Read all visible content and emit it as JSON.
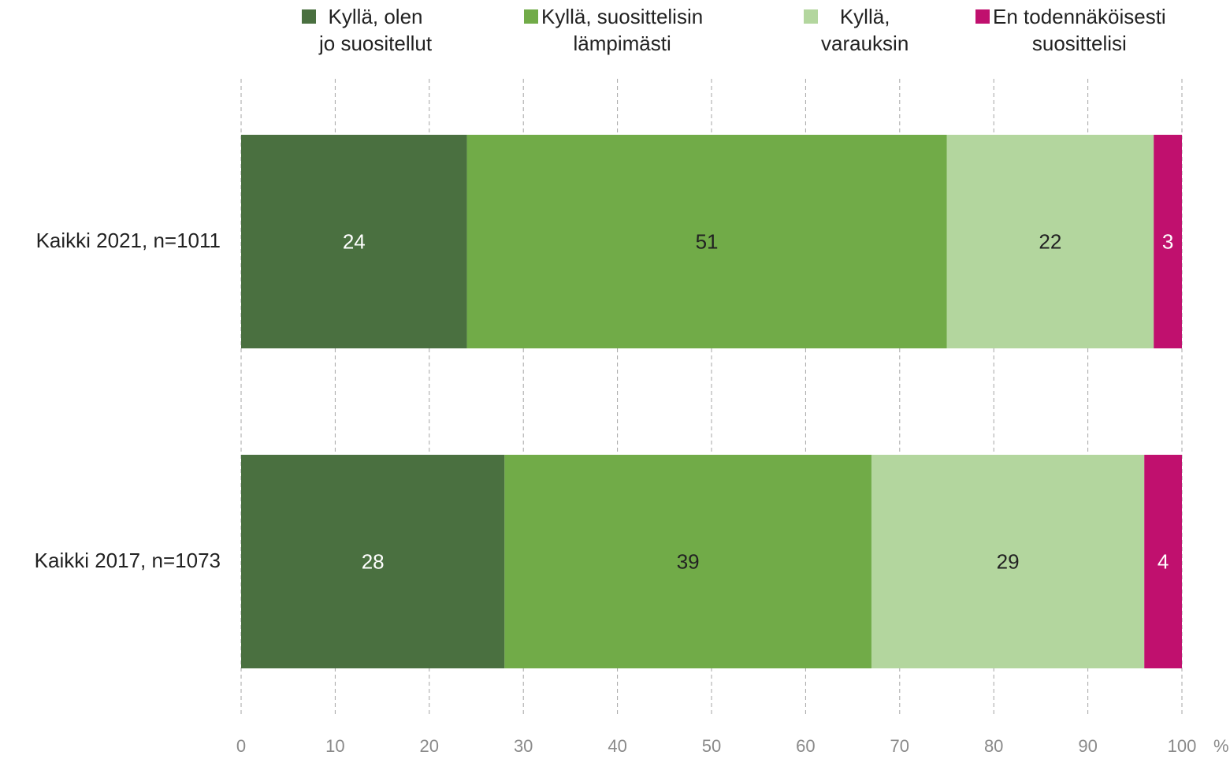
{
  "chart_data": {
    "type": "bar",
    "orientation": "horizontal",
    "stacked": true,
    "categories": [
      "Kaikki 2021, n=1011",
      "Kaikki 2017, n=1073"
    ],
    "series": [
      {
        "name": "Kyllä, olen jo suositellut",
        "label_lines": [
          "Kyllä, olen",
          "jo suositellut"
        ],
        "values": [
          24,
          28
        ],
        "labels": [
          "24",
          "28"
        ],
        "color": "#4a7040",
        "label_color": "#ffffff"
      },
      {
        "name": "Kyllä, suosittelisin lämpimästi",
        "label_lines": [
          "Kyllä, suosittelisin",
          "lämpimästi"
        ],
        "values": [
          51,
          39
        ],
        "labels": [
          "51",
          "39"
        ],
        "color": "#71ab48",
        "label_color": "#222222"
      },
      {
        "name": "Kyllä, varauksin",
        "label_lines": [
          "Kyllä,",
          "varauksin"
        ],
        "values": [
          22,
          29
        ],
        "labels": [
          "22",
          "29"
        ],
        "color": "#b3d69e",
        "label_color": "#222222"
      },
      {
        "name": "En todennäköisesti suosittelisi",
        "label_lines": [
          "En todennäköisesti",
          "suosittelisi"
        ],
        "values": [
          3,
          4
        ],
        "labels": [
          "3",
          "4"
        ],
        "color": "#c0106e",
        "label_color": "#ffffff"
      }
    ],
    "xlim": [
      0,
      100
    ],
    "x_ticks": [
      "0",
      "10",
      "20",
      "30",
      "40",
      "50",
      "60",
      "70",
      "80",
      "90",
      "100"
    ],
    "x_unit": "%",
    "grid": true,
    "legend_position": "top"
  }
}
